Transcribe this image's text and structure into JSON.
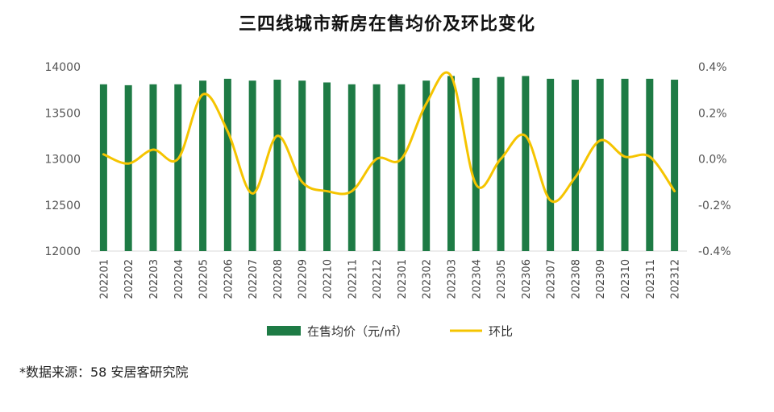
{
  "chart_data": {
    "type": "bar+line",
    "title": "三四线城市新房在售均价及环比变化",
    "categories": [
      "202201",
      "202202",
      "202203",
      "202204",
      "202205",
      "202206",
      "202207",
      "202208",
      "202209",
      "202210",
      "202211",
      "202212",
      "202301",
      "202302",
      "202303",
      "202304",
      "202305",
      "202306",
      "202307",
      "202308",
      "202309",
      "202310",
      "202311",
      "202312"
    ],
    "series": [
      {
        "name": "在售均价（元/㎡）",
        "type": "bar",
        "axis": "left",
        "color": "#1E7B45",
        "values": [
          13810,
          13800,
          13810,
          13810,
          13850,
          13870,
          13850,
          13860,
          13850,
          13830,
          13810,
          13810,
          13810,
          13850,
          13900,
          13880,
          13890,
          13900,
          13870,
          13860,
          13870,
          13870,
          13870,
          13860
        ]
      },
      {
        "name": "环比",
        "type": "line",
        "axis": "right",
        "color": "#F5C400",
        "values": [
          0.0002,
          -0.0002,
          0.0004,
          0.0,
          0.0028,
          0.0012,
          -0.0015,
          0.001,
          -0.001,
          -0.0014,
          -0.0014,
          0.0,
          0.0,
          0.0024,
          0.0036,
          -0.0011,
          0.0,
          0.001,
          -0.0018,
          -0.0008,
          0.0008,
          0.0001,
          0.0001,
          -0.0014
        ]
      }
    ],
    "y_left": {
      "min": 12000,
      "max": 14000,
      "ticks": [
        12000,
        12500,
        13000,
        13500,
        14000
      ],
      "tick_labels": [
        "12000",
        "12500",
        "13000",
        "13500",
        "14000"
      ]
    },
    "y_right": {
      "min": -0.004,
      "max": 0.004,
      "ticks": [
        -0.004,
        -0.002,
        0,
        0.002,
        0.004
      ],
      "tick_labels": [
        "-0.4%",
        "-0.2%",
        "0.0%",
        "0.2%",
        "0.4%"
      ]
    },
    "legend": {
      "position": "bottom",
      "items": [
        "在售均价（元/㎡）",
        "环比"
      ]
    },
    "grid": false
  },
  "footer": {
    "source": "*数据来源：58 安居客研究院"
  }
}
